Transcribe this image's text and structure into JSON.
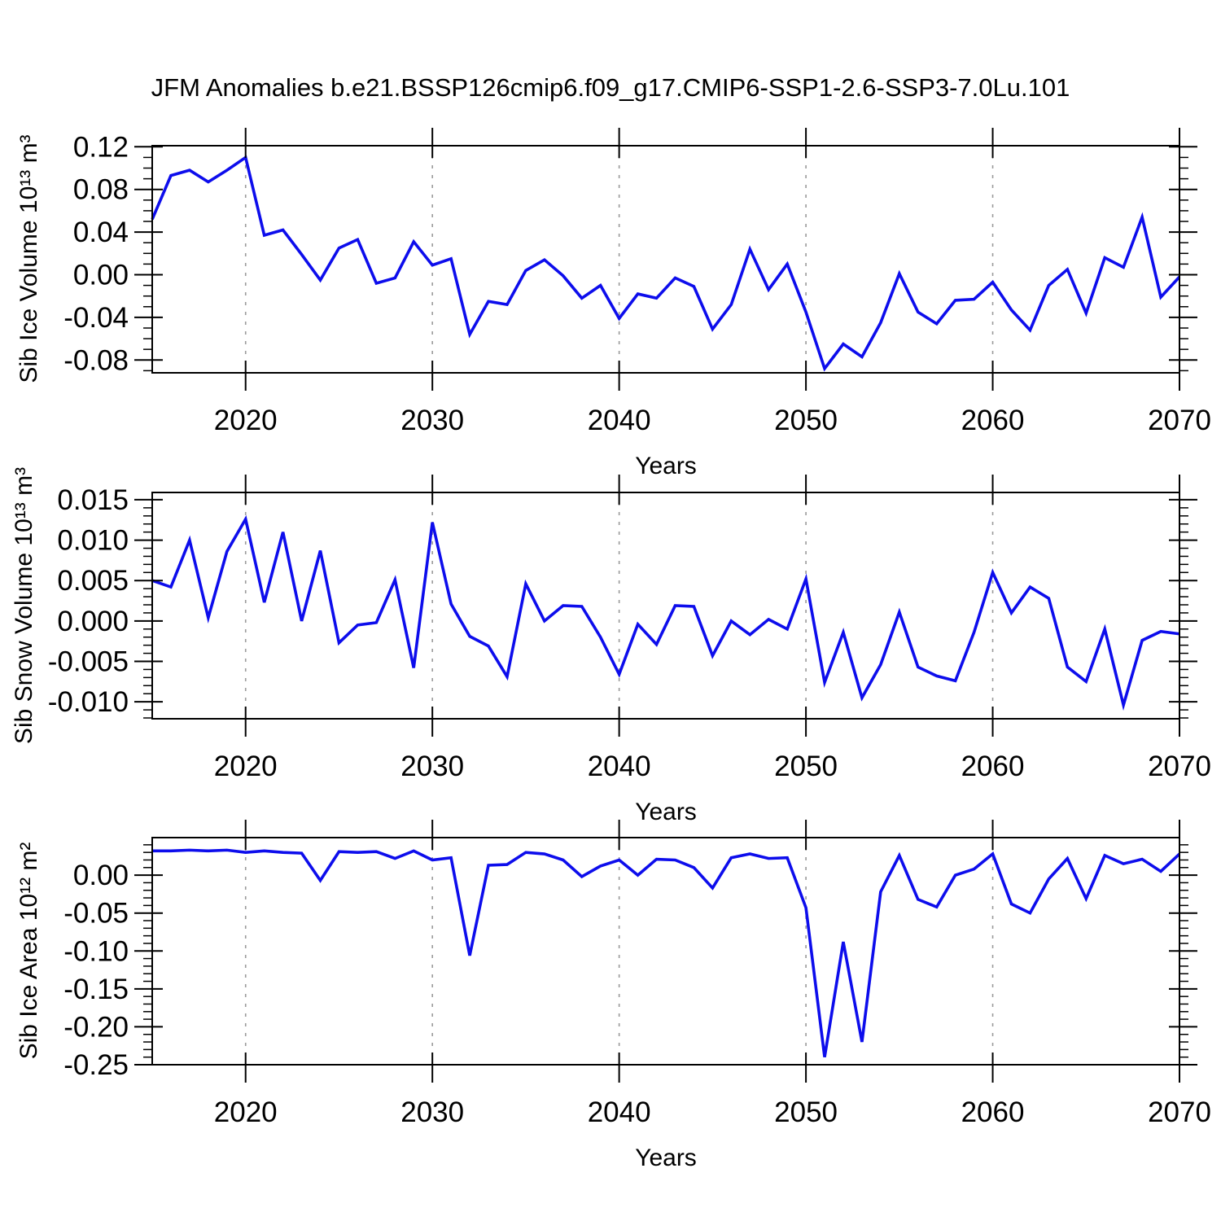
{
  "title": "JFM Anomalies b.e21.BSSP126cmip6.f09_g17.CMIP6-SSP1-2.6-SSP3-7.0Lu.101",
  "colors": {
    "line": "#0d0dec",
    "grid": "#9a9a9a",
    "axis": "#000000"
  },
  "chart_data": [
    {
      "type": "line",
      "name": "sib-ice-volume",
      "title": "",
      "ylabel": "Sib Ice Volume 10¹³ m³",
      "xlabel": "Years",
      "x_start": 2015,
      "x_end": 2070,
      "x_step": 1,
      "years": [
        2015,
        2016,
        2017,
        2018,
        2019,
        2020,
        2021,
        2022,
        2023,
        2024,
        2025,
        2026,
        2027,
        2028,
        2029,
        2030,
        2031,
        2032,
        2033,
        2034,
        2035,
        2036,
        2037,
        2038,
        2039,
        2040,
        2041,
        2042,
        2043,
        2044,
        2045,
        2046,
        2047,
        2048,
        2049,
        2050,
        2051,
        2052,
        2053,
        2054,
        2055,
        2056,
        2057,
        2058,
        2059,
        2060,
        2061,
        2062,
        2063,
        2064,
        2065,
        2066,
        2067,
        2068,
        2069,
        2070
      ],
      "values": [
        0.052,
        0.093,
        0.098,
        0.087,
        0.098,
        0.11,
        0.037,
        0.042,
        0.019,
        -0.005,
        0.025,
        0.033,
        -0.008,
        -0.003,
        0.031,
        0.009,
        0.015,
        -0.056,
        -0.025,
        -0.028,
        0.004,
        0.014,
        -0.001,
        -0.022,
        -0.01,
        -0.041,
        -0.018,
        -0.022,
        -0.003,
        -0.011,
        -0.051,
        -0.028,
        0.024,
        -0.014,
        0.01,
        -0.035,
        -0.088,
        -0.065,
        -0.077,
        -0.045,
        0.001,
        -0.035,
        -0.046,
        -0.024,
        -0.023,
        -0.007,
        -0.033,
        -0.052,
        -0.01,
        0.005,
        -0.036,
        0.016,
        0.007,
        0.054,
        -0.021,
        -0.002
      ],
      "ylim": [
        -0.092,
        0.121
      ],
      "ytick_major": [
        0.12,
        0.08,
        0.04,
        0.0,
        -0.04,
        -0.08
      ],
      "ytick_labels": [
        "0.12",
        "0.08",
        "0.04",
        "0.00",
        "-0.04",
        "-0.08"
      ],
      "ytick_minor_step": 0.01,
      "xlim": [
        2015,
        2070
      ],
      "xtick_major": [
        2020,
        2030,
        2040,
        2050,
        2060,
        2070
      ],
      "xtick_labels": [
        "2020",
        "2030",
        "2040",
        "2050",
        "2060",
        "2070"
      ],
      "xtick_minor_step": 2,
      "grid_x": [
        2020,
        2030,
        2040,
        2050,
        2060
      ],
      "grid_style": "dashed-vertical",
      "legend": "none"
    },
    {
      "type": "line",
      "name": "sib-snow-volume",
      "title": "",
      "ylabel": "Sib Snow Volume 10¹³ m³",
      "xlabel": "Years",
      "x_start": 2015,
      "x_end": 2070,
      "x_step": 1,
      "years": [
        2015,
        2016,
        2017,
        2018,
        2019,
        2020,
        2021,
        2022,
        2023,
        2024,
        2025,
        2026,
        2027,
        2028,
        2029,
        2030,
        2031,
        2032,
        2033,
        2034,
        2035,
        2036,
        2037,
        2038,
        2039,
        2040,
        2041,
        2042,
        2043,
        2044,
        2045,
        2046,
        2047,
        2048,
        2049,
        2050,
        2051,
        2052,
        2053,
        2054,
        2055,
        2056,
        2057,
        2058,
        2059,
        2060,
        2061,
        2062,
        2063,
        2064,
        2065,
        2066,
        2067,
        2068,
        2069,
        2070
      ],
      "values": [
        0.005,
        0.0042,
        0.01,
        0.0004,
        0.0086,
        0.0126,
        0.0023,
        0.011,
        0.0,
        0.0087,
        -0.0027,
        -0.0005,
        -0.0002,
        0.0051,
        -0.0058,
        0.0122,
        0.0021,
        -0.0019,
        -0.0031,
        -0.0069,
        0.0046,
        0.0,
        0.0019,
        0.0018,
        -0.002,
        -0.0066,
        -0.0004,
        -0.0029,
        0.0019,
        0.0018,
        -0.0043,
        0.0,
        -0.0017,
        0.0002,
        -0.001,
        0.0052,
        -0.0076,
        -0.0014,
        -0.0095,
        -0.0054,
        0.0011,
        -0.0057,
        -0.0068,
        -0.0074,
        -0.0014,
        0.006,
        0.001,
        0.0042,
        0.0028,
        -0.0057,
        -0.0075,
        -0.001,
        -0.0104,
        -0.0024,
        -0.0013,
        -0.0016
      ],
      "ylim": [
        -0.0121,
        0.0159
      ],
      "ytick_major": [
        0.015,
        0.01,
        0.005,
        0.0,
        -0.005,
        -0.01
      ],
      "ytick_labels": [
        "0.015",
        "0.010",
        "0.005",
        "0.000",
        "-0.005",
        "-0.010"
      ],
      "ytick_minor_step": 0.001,
      "xlim": [
        2015,
        2070
      ],
      "xtick_major": [
        2020,
        2030,
        2040,
        2050,
        2060,
        2070
      ],
      "xtick_labels": [
        "2020",
        "2030",
        "2040",
        "2050",
        "2060",
        "2070"
      ],
      "xtick_minor_step": 2,
      "grid_x": [
        2020,
        2030,
        2040,
        2050,
        2060
      ],
      "grid_style": "dashed-vertical",
      "legend": "none"
    },
    {
      "type": "line",
      "name": "sib-ice-area",
      "title": "",
      "ylabel": "Sib Ice Area 10¹² m²",
      "xlabel": "Years",
      "x_start": 2015,
      "x_end": 2070,
      "x_step": 1,
      "years": [
        2015,
        2016,
        2017,
        2018,
        2019,
        2020,
        2021,
        2022,
        2023,
        2024,
        2025,
        2026,
        2027,
        2028,
        2029,
        2030,
        2031,
        2032,
        2033,
        2034,
        2035,
        2036,
        2037,
        2038,
        2039,
        2040,
        2041,
        2042,
        2043,
        2044,
        2045,
        2046,
        2047,
        2048,
        2049,
        2050,
        2051,
        2052,
        2053,
        2054,
        2055,
        2056,
        2057,
        2058,
        2059,
        2060,
        2061,
        2062,
        2063,
        2064,
        2065,
        2066,
        2067,
        2068,
        2069,
        2070
      ],
      "values": [
        0.032,
        0.032,
        0.033,
        0.032,
        0.033,
        0.03,
        0.032,
        0.03,
        0.029,
        -0.007,
        0.031,
        0.03,
        0.031,
        0.022,
        0.032,
        0.02,
        0.023,
        -0.106,
        0.013,
        0.014,
        0.03,
        0.028,
        0.02,
        -0.002,
        0.012,
        0.02,
        0.0,
        0.021,
        0.02,
        0.01,
        -0.017,
        0.023,
        0.028,
        0.022,
        0.023,
        -0.043,
        -0.24,
        -0.088,
        -0.22,
        -0.022,
        0.026,
        -0.032,
        -0.042,
        0.0,
        0.008,
        0.028,
        -0.038,
        -0.05,
        -0.005,
        0.022,
        -0.031,
        0.026,
        0.015,
        0.021,
        0.005,
        0.028
      ],
      "ylim": [
        -0.25,
        0.0495
      ],
      "ytick_major": [
        0.0,
        -0.05,
        -0.1,
        -0.15,
        -0.2,
        -0.25
      ],
      "ytick_labels": [
        "0.00",
        "-0.05",
        "-0.10",
        "-0.15",
        "-0.20",
        "-0.25"
      ],
      "ytick_minor_step": 0.01,
      "xlim": [
        2015,
        2070
      ],
      "xtick_major": [
        2020,
        2030,
        2040,
        2050,
        2060,
        2070
      ],
      "xtick_labels": [
        "2020",
        "2030",
        "2040",
        "2050",
        "2060",
        "2070"
      ],
      "xtick_minor_step": 2,
      "grid_x": [
        2020,
        2030,
        2040,
        2050,
        2060
      ],
      "grid_style": "dashed-vertical",
      "legend": "none"
    }
  ]
}
